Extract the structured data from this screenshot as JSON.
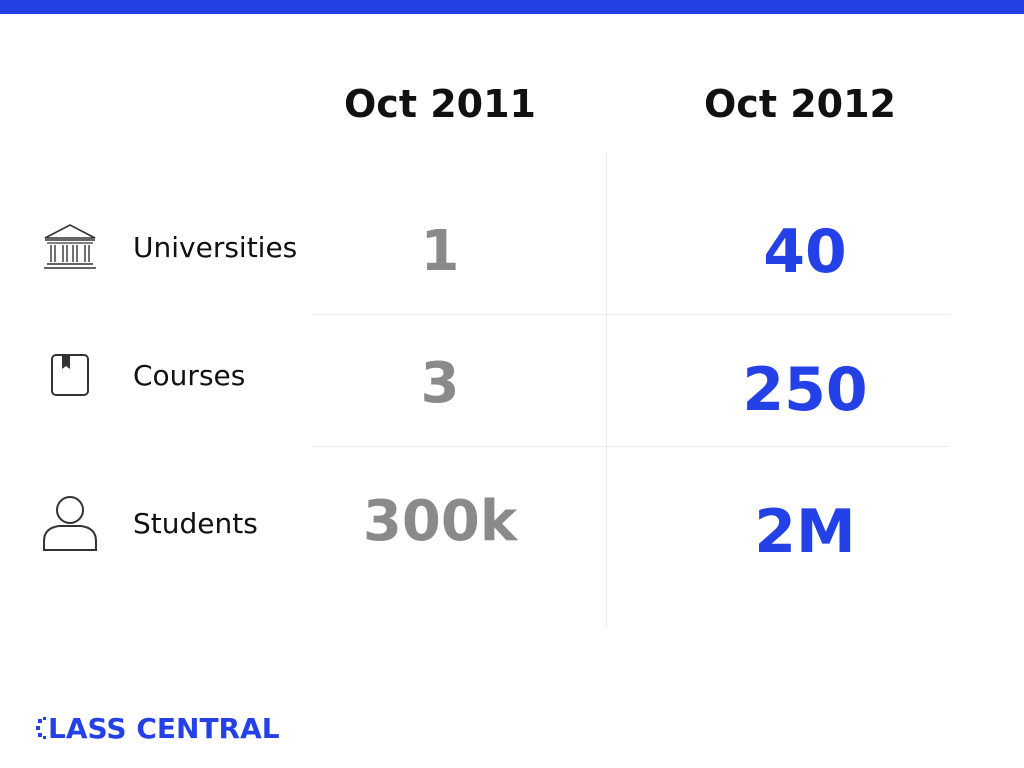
{
  "header": {
    "col1": "Oct 2011",
    "col2": "Oct 2012"
  },
  "rows": [
    {
      "label": "Universities",
      "icon": "university-icon",
      "oct2011": "1",
      "oct2012": "40"
    },
    {
      "label": "Courses",
      "icon": "book-icon",
      "oct2011": "3",
      "oct2012": "250"
    },
    {
      "label": "Students",
      "icon": "person-icon",
      "oct2011": "300k",
      "oct2012": "2M"
    }
  ],
  "brand": {
    "name": "CLASS CENTRAL",
    "mark_text": "C",
    "rest_text": "LASS CENTRAL"
  },
  "colors": {
    "accent": "#2441e7",
    "old_value": "#8a8a8a",
    "text": "#111111",
    "divider": "#ececec"
  }
}
